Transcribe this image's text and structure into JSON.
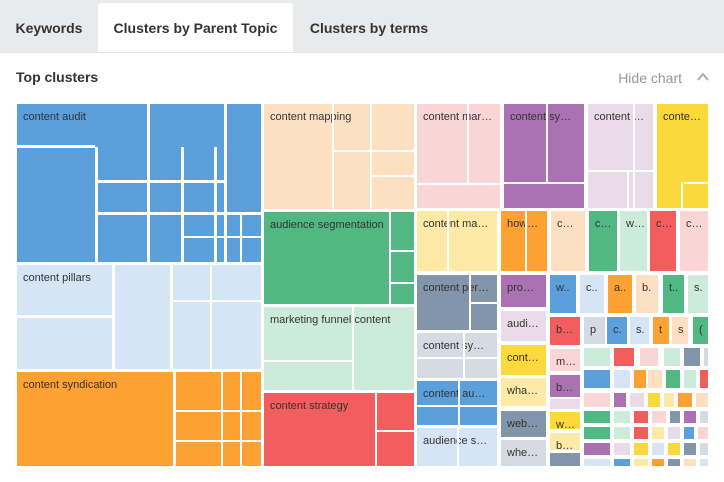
{
  "tabs": [
    {
      "label": "Keywords"
    },
    {
      "label": "Clusters by Parent Topic",
      "active": true
    },
    {
      "label": "Clusters by terms"
    }
  ],
  "section": {
    "title": "Top clusters",
    "hide_chart": "Hide chart",
    "chevron_icon": "chevron-up-icon"
  },
  "palette": {
    "blue": "#5b9fdb",
    "lightblue": "#d5e5f5",
    "orange": "#fda133",
    "peach": "#fde0c1",
    "green": "#52b883",
    "lightgreen": "#ccebdb",
    "red": "#f25d5d",
    "pink": "#f9d5d5",
    "purple": "#ab72b3",
    "lightpurple": "#eadbea",
    "yellow": "#fbd93a",
    "lightyellow": "#fdeaa7",
    "slate": "#8295aa",
    "lightgray": "#d4dbe3"
  },
  "clusters": [
    {
      "label": "content audit",
      "color": "blue"
    },
    {
      "label": "content pillars",
      "color": "lightblue"
    },
    {
      "label": "content syndication",
      "color": "orange"
    },
    {
      "label": "content mapping",
      "color": "peach"
    },
    {
      "label": "audience segmentation",
      "color": "green"
    },
    {
      "label": "marketing funnel content",
      "color": "lightgreen"
    },
    {
      "label": "content strategy",
      "color": "red"
    },
    {
      "label": "content mar…",
      "color": "pink"
    },
    {
      "label": "content sy…",
      "color": "purple"
    },
    {
      "label": "content …",
      "color": "lightpurple"
    },
    {
      "label": "conte…",
      "color": "yellow"
    },
    {
      "label": "content ma…",
      "color": "lightyellow"
    },
    {
      "label": "how…",
      "color": "orange"
    },
    {
      "label": "c…",
      "color": "peach"
    },
    {
      "label": "c…",
      "color": "green"
    },
    {
      "label": "w…",
      "color": "lightgreen"
    },
    {
      "label": "c…",
      "color": "red"
    },
    {
      "label": "c…",
      "color": "pink"
    },
    {
      "label": "content per…",
      "color": "slate"
    },
    {
      "label": "content sy…",
      "color": "lightgray"
    },
    {
      "label": "content au…",
      "color": "blue"
    },
    {
      "label": "audience s…",
      "color": "lightblue"
    },
    {
      "label": "pro…",
      "color": "purple"
    },
    {
      "label": "audi…",
      "color": "lightpurple"
    },
    {
      "label": "cont…",
      "color": "yellow"
    },
    {
      "label": "wha…",
      "color": "lightyellow"
    },
    {
      "label": "web…",
      "color": "slate"
    },
    {
      "label": "whe…",
      "color": "lightgray"
    },
    {
      "label": "w..",
      "color": "blue"
    },
    {
      "label": "c..",
      "color": "lightblue"
    },
    {
      "label": "a..",
      "color": "orange"
    },
    {
      "label": "b.",
      "color": "peach"
    },
    {
      "label": "t..",
      "color": "green"
    },
    {
      "label": "s.",
      "color": "lightgreen"
    },
    {
      "label": "b…",
      "color": "red"
    },
    {
      "label": "p",
      "color": "lightgray"
    },
    {
      "label": "c.",
      "color": "blue"
    },
    {
      "label": "s.",
      "color": "lightblue"
    },
    {
      "label": "t",
      "color": "orange"
    },
    {
      "label": "s",
      "color": "peach"
    },
    {
      "label": "(",
      "color": "green"
    },
    {
      "label": "m…",
      "color": "pink"
    },
    {
      "label": "b…",
      "color": "purple"
    },
    {
      "label": "c…",
      "color": "lightpurple"
    },
    {
      "label": "w…",
      "color": "yellow"
    },
    {
      "label": "b…",
      "color": "lightyellow"
    },
    {
      "label": "",
      "color": "slate"
    }
  ],
  "small_tile_colors": [
    "lightgreen",
    "red",
    "pink",
    "lightgreen",
    "slate",
    "lightgray",
    "blue",
    "lightblue",
    "orange",
    "peach",
    "green",
    "lightgreen",
    "red",
    "pink",
    "purple",
    "lightpurple",
    "yellow",
    "lightyellow",
    "orange",
    "peach",
    "green",
    "lightgreen",
    "red",
    "pink",
    "slate",
    "purple",
    "lightgray",
    "green",
    "lightgreen",
    "red",
    "lightyellow",
    "lightpurple",
    "blue",
    "pink",
    "purple",
    "lightpurple",
    "yellow",
    "lightblue",
    "yellow",
    "slate",
    "lightgray",
    "lightblue",
    "blue",
    "lightyellow",
    "orange",
    "slate",
    "peach",
    "lightblue"
  ]
}
